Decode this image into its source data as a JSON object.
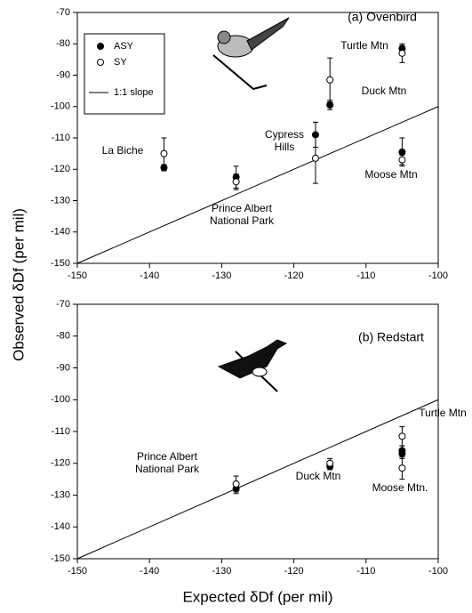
{
  "chart_data": [
    {
      "type": "scatter",
      "title": "(a) Ovenbird",
      "ylabel": "Observed δDf (per mil)",
      "xlim": [
        -150,
        -100
      ],
      "ylim": [
        -150,
        -70
      ],
      "xticks": [
        -150,
        -140,
        -130,
        -120,
        -110,
        -100
      ],
      "yticks": [
        -150,
        -140,
        -130,
        -120,
        -110,
        -100,
        -90,
        -80,
        -70
      ],
      "legend": "upper left",
      "series": [
        {
          "name": "ASY",
          "color": "#000000",
          "x": [
            -138,
            -128,
            -117,
            -115,
            -105,
            -105
          ],
          "values": [
            -119.5,
            -122.5,
            -109,
            -99.5,
            -114.5,
            -81.5
          ],
          "errors": [
            1,
            3.5,
            4,
            1.5,
            4.5,
            1
          ]
        },
        {
          "name": "SY",
          "color": "#ffffff",
          "x": [
            -138,
            -128,
            -117,
            -115,
            -105,
            -105
          ],
          "values": [
            -115,
            -124,
            -116.5,
            -91.5,
            -117,
            -83
          ],
          "errors": [
            5,
            2.5,
            8,
            7,
            1.5,
            3
          ]
        }
      ],
      "reference_line": {
        "name": "1:1 slope",
        "x": [
          -150,
          -100
        ],
        "values": [
          -150,
          -100
        ]
      },
      "annotations": [
        [
          "La Biche"
        ],
        [
          "Prince Albert",
          "National Park"
        ],
        [
          "Cypress",
          "Hills"
        ],
        [
          "Duck Mtn"
        ],
        [
          "Moose Mtn"
        ],
        [
          "Turtle Mtn"
        ]
      ]
    },
    {
      "type": "scatter",
      "title": "(b) Redstart",
      "xlabel": "Expected δDf (per mil)",
      "xlim": [
        -150,
        -100
      ],
      "ylim": [
        -150,
        -70
      ],
      "xticks": [
        -150,
        -140,
        -130,
        -120,
        -110,
        -100
      ],
      "yticks": [
        -150,
        -140,
        -130,
        -120,
        -110,
        -100,
        -90,
        -80,
        -70
      ],
      "series": [
        {
          "name": "ASY",
          "color": "#000000",
          "x": [
            -128,
            -115,
            -105,
            -105
          ],
          "values": [
            -128,
            -121,
            -116,
            -117
          ],
          "errors": [
            1.5,
            1,
            1.5,
            1.5
          ]
        },
        {
          "name": "SY",
          "color": "#ffffff",
          "x": [
            -128,
            -115,
            -105,
            -105
          ],
          "values": [
            -126.5,
            -120,
            -111.5,
            -121.5
          ],
          "errors": [
            2.5,
            1.5,
            3,
            3.5
          ]
        }
      ],
      "reference_line": {
        "name": "1:1 slope",
        "x": [
          -150,
          -100
        ],
        "values": [
          -150,
          -100
        ]
      },
      "annotations": [
        [
          "Prince Albert",
          "National Park"
        ],
        [
          "Duck Mtn"
        ],
        [
          "Turtle Mtn"
        ],
        [
          "Moose Mtn."
        ]
      ]
    }
  ]
}
